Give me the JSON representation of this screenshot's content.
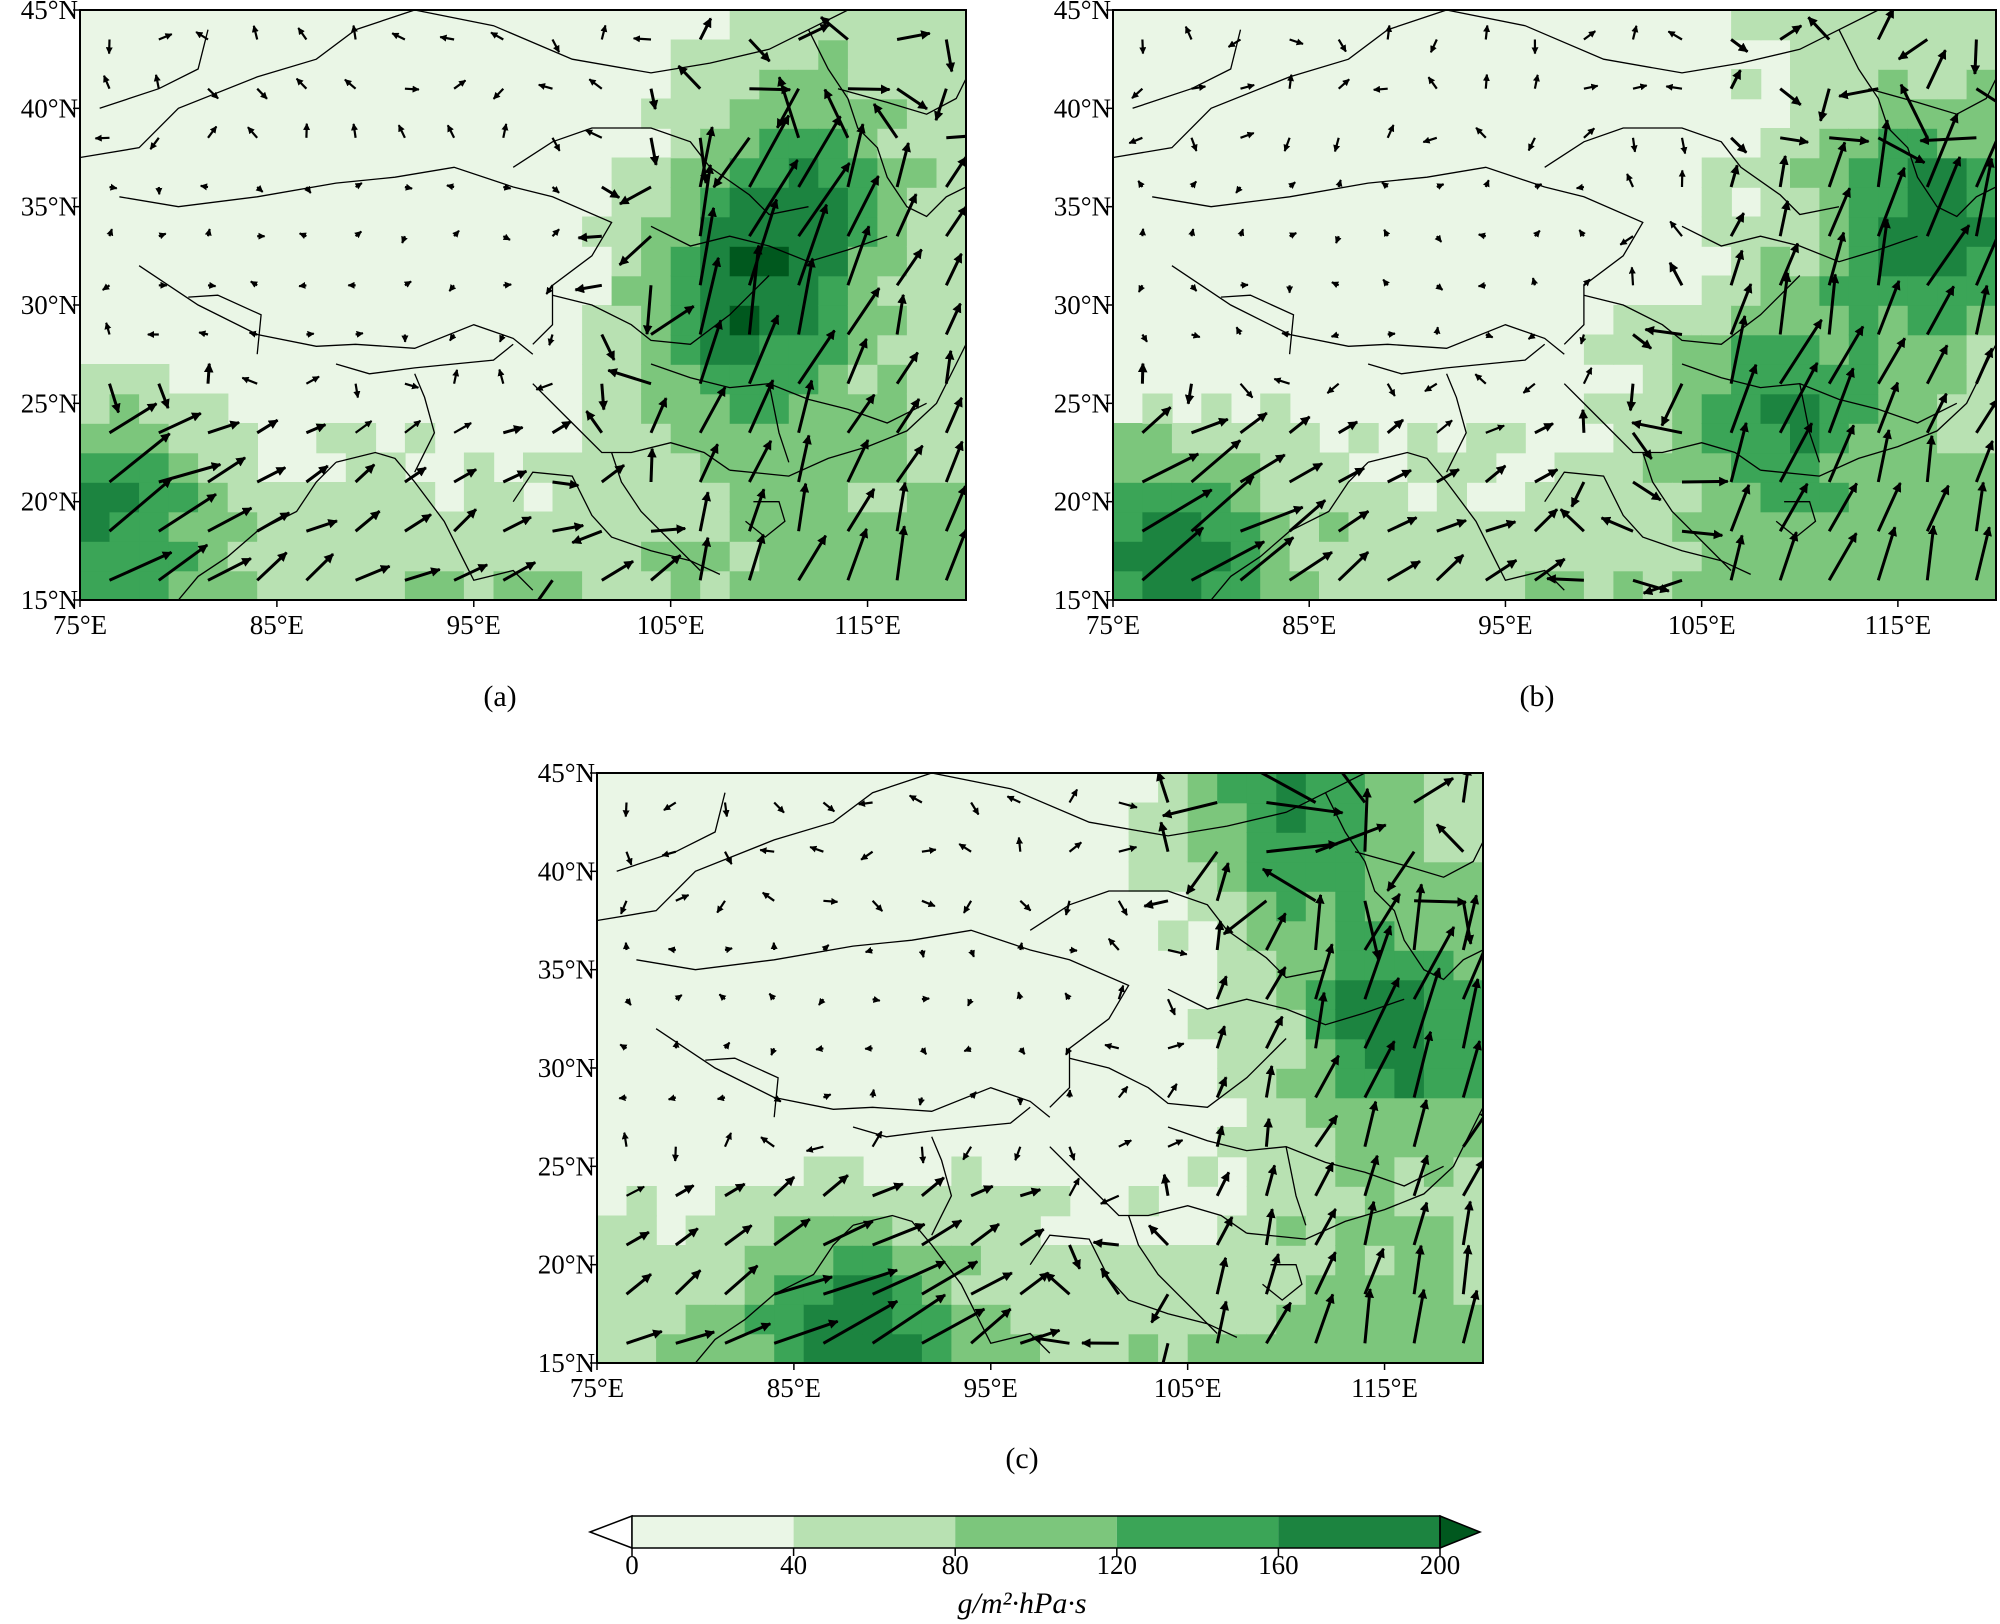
{
  "colors": {
    "background": "#eaf6e6",
    "levels": [
      "#eaf6e6",
      "#b8e1b2",
      "#7cc67c",
      "#3ba557",
      "#1c8440",
      "#00581e"
    ],
    "border": "#000000",
    "arrow": "#000000",
    "grid": "#d6e6d2"
  },
  "map": {
    "x_ticks": [
      "75°E",
      "85°E",
      "95°E",
      "105°E",
      "115°E"
    ],
    "y_ticks": [
      "45°N",
      "40°N",
      "35°N",
      "30°N",
      "25°N",
      "20°N",
      "15°N"
    ],
    "lon_range": [
      75,
      120
    ],
    "lat_range": [
      15,
      45
    ]
  },
  "panels": [
    {
      "label": "(a)",
      "maxima": [
        [
          108,
          28
        ],
        [
          76,
          20
        ],
        [
          110,
          35
        ]
      ]
    },
    {
      "label": "(b)",
      "maxima": [
        [
          117,
          34
        ],
        [
          108,
          25
        ],
        [
          78,
          18
        ]
      ]
    },
    {
      "label": "(c)",
      "maxima": [
        [
          110,
          43
        ],
        [
          116,
          32
        ],
        [
          88,
          17
        ]
      ]
    }
  ],
  "colorbar": {
    "ticks": [
      "0",
      "40",
      "80",
      "120",
      "160",
      "200"
    ],
    "unit_label": "g/m²·hPa·s"
  }
}
